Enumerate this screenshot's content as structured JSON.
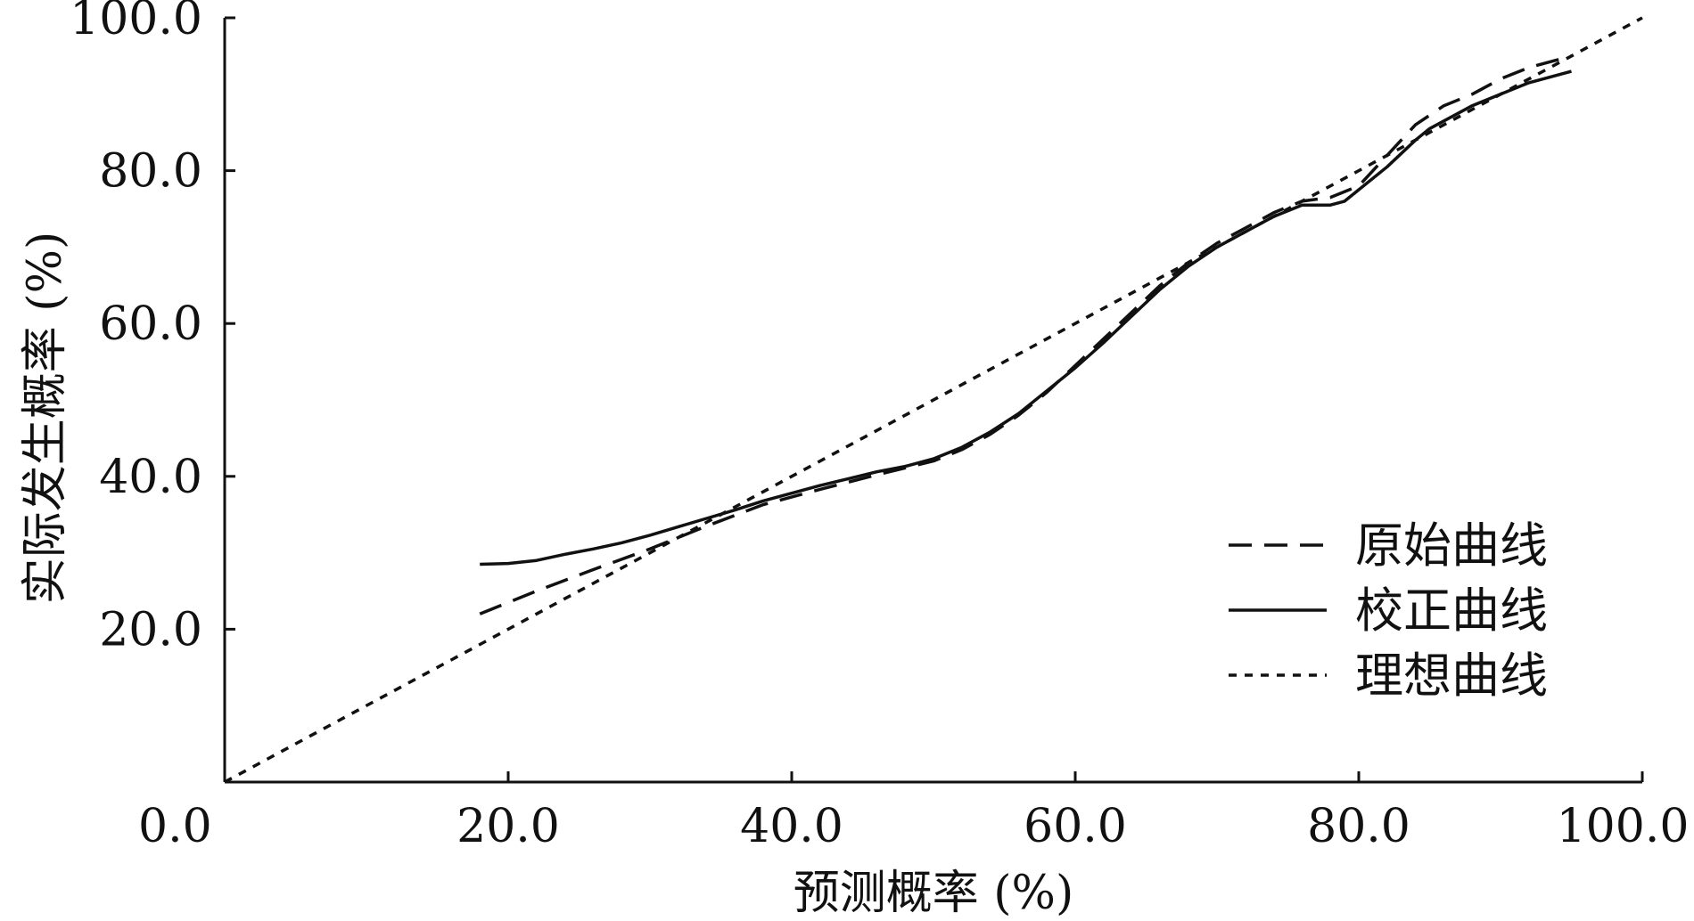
{
  "chart_data": {
    "type": "line",
    "xlabel": "预测概率 (%)",
    "ylabel": "实际发生概率 (%)",
    "xlim": [
      0,
      100
    ],
    "ylim": [
      0,
      100
    ],
    "x_ticks": [
      "0.0",
      "20.0",
      "40.0",
      "60.0",
      "80.0",
      "100.0"
    ],
    "y_ticks": [
      "20.0",
      "40.0",
      "60.0",
      "80.0",
      "100.0"
    ],
    "grid": false,
    "legend_position": "bottom-right",
    "series": [
      {
        "name": "原始曲线",
        "style": "dashed",
        "x": [
          18,
          22,
          26,
          30,
          34,
          38,
          42,
          46,
          50,
          52,
          54,
          56,
          58,
          60,
          62,
          64,
          66,
          68,
          70,
          72,
          74,
          76,
          78,
          80,
          82,
          84,
          86,
          88,
          90,
          92,
          95
        ],
        "y": [
          22,
          25,
          27.8,
          30.5,
          33.5,
          36.3,
          38.3,
          40.2,
          42,
          43.5,
          45.5,
          48,
          51,
          54.5,
          58,
          61.5,
          65,
          68,
          70.5,
          72.5,
          74.5,
          76,
          76.5,
          78,
          82,
          86,
          88.5,
          90,
          92,
          93.5,
          95
        ]
      },
      {
        "name": "校正曲线",
        "style": "solid",
        "x": [
          18,
          20,
          22,
          24,
          26,
          28,
          30,
          32,
          34,
          36,
          38,
          40,
          42,
          44,
          46,
          48,
          50,
          52,
          54,
          56,
          58,
          60,
          62,
          64,
          66,
          68,
          70,
          72,
          74,
          76,
          78,
          79,
          80,
          82,
          84,
          85,
          86,
          88,
          90,
          92,
          95
        ],
        "y": [
          28.5,
          28.6,
          29,
          29.8,
          30.5,
          31.3,
          32.3,
          33.4,
          34.5,
          35.6,
          36.8,
          37.8,
          38.8,
          39.7,
          40.6,
          41.3,
          42.3,
          43.8,
          45.8,
          48.2,
          51.2,
          54.2,
          57.5,
          61,
          64.5,
          67.5,
          70,
          72,
          74,
          75.5,
          75.5,
          76,
          77.5,
          80.5,
          84,
          85.5,
          86.5,
          88.5,
          90,
          91.5,
          93
        ]
      },
      {
        "name": "理想曲线",
        "style": "dotted",
        "x": [
          0,
          100
        ],
        "y": [
          0,
          100
        ]
      }
    ]
  }
}
